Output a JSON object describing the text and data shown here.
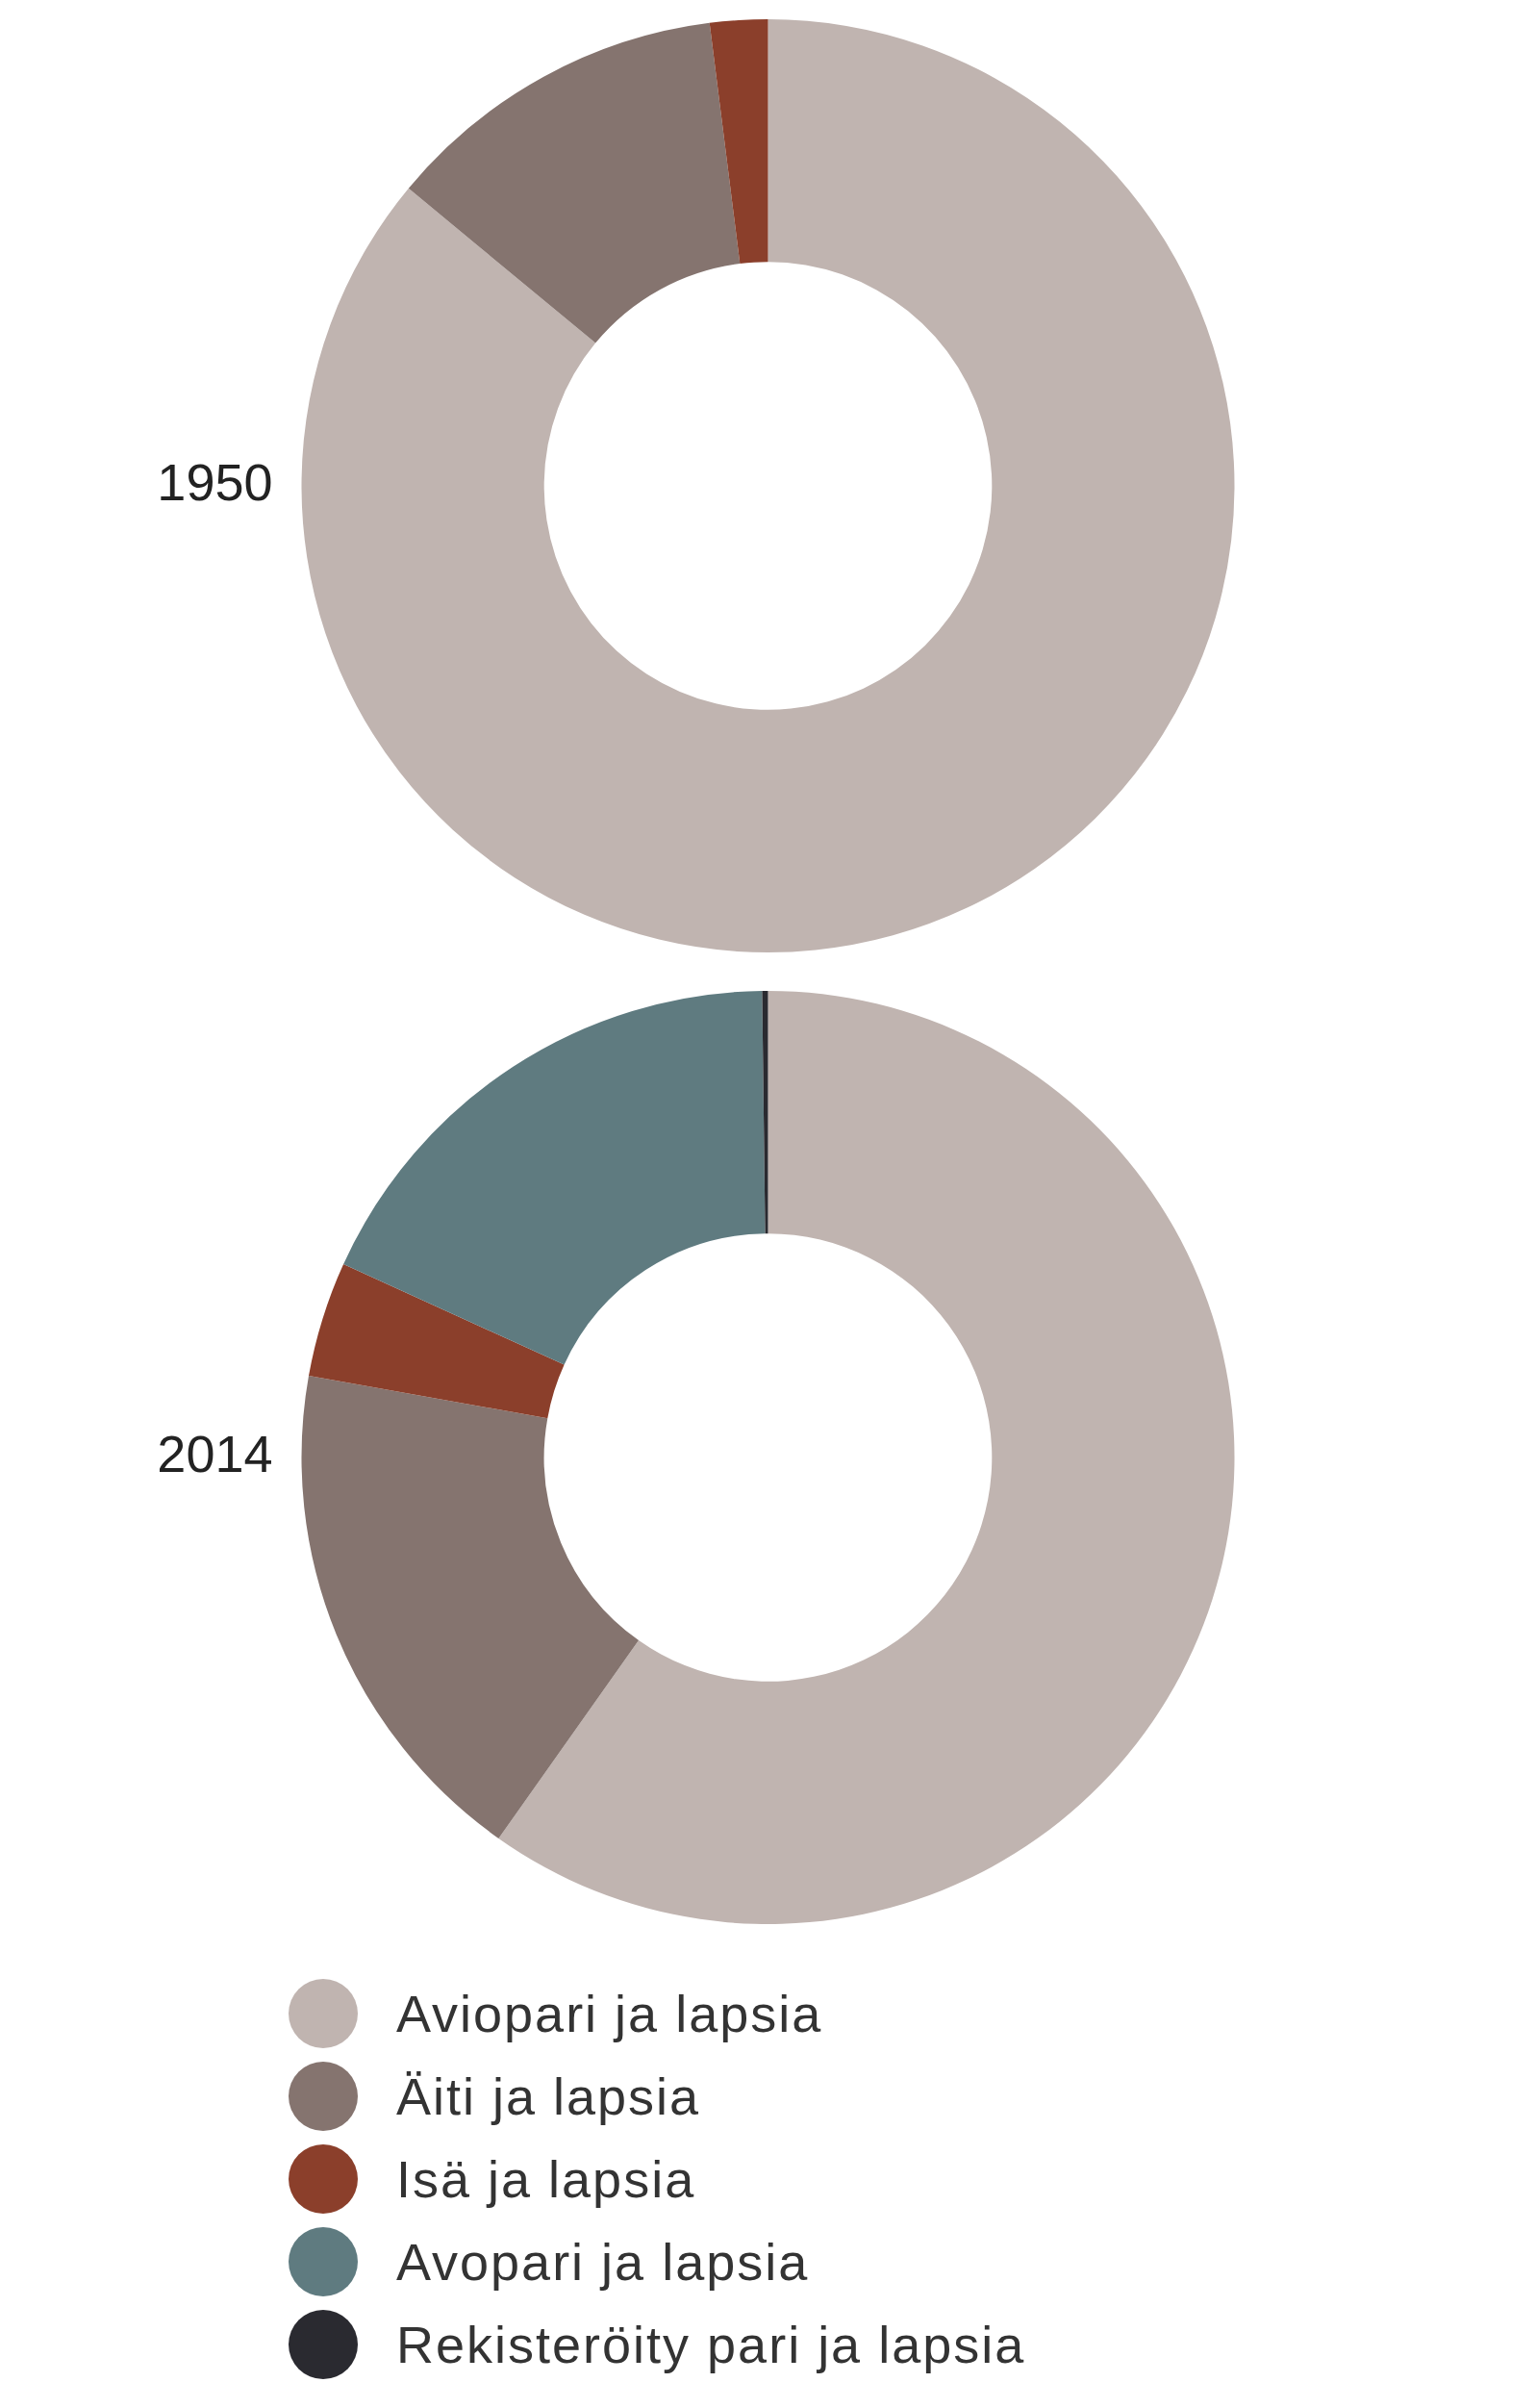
{
  "chart_data": [
    {
      "type": "donut",
      "title": "1950",
      "categories": [
        null,
        null,
        null
      ],
      "values": [
        86,
        12,
        2
      ],
      "colors": [
        "#c0b4b0",
        "#85746f",
        "#8b3f2b"
      ],
      "legend": false
    },
    {
      "type": "donut",
      "title": "2014",
      "categories": [
        "Aviopari ja lapsia",
        "Äiti ja lapsia",
        "Isä ja lapsia",
        "Avopari ja lapsia",
        "Rekisteröity pari ja lapsia"
      ],
      "values": [
        59.8,
        18,
        4,
        18,
        0.2
      ],
      "colors": [
        "#c0b4b0",
        "#85746f",
        "#8b3f2b",
        "#5f7b80",
        "#2a2a30"
      ],
      "legend": "bottom"
    }
  ]
}
